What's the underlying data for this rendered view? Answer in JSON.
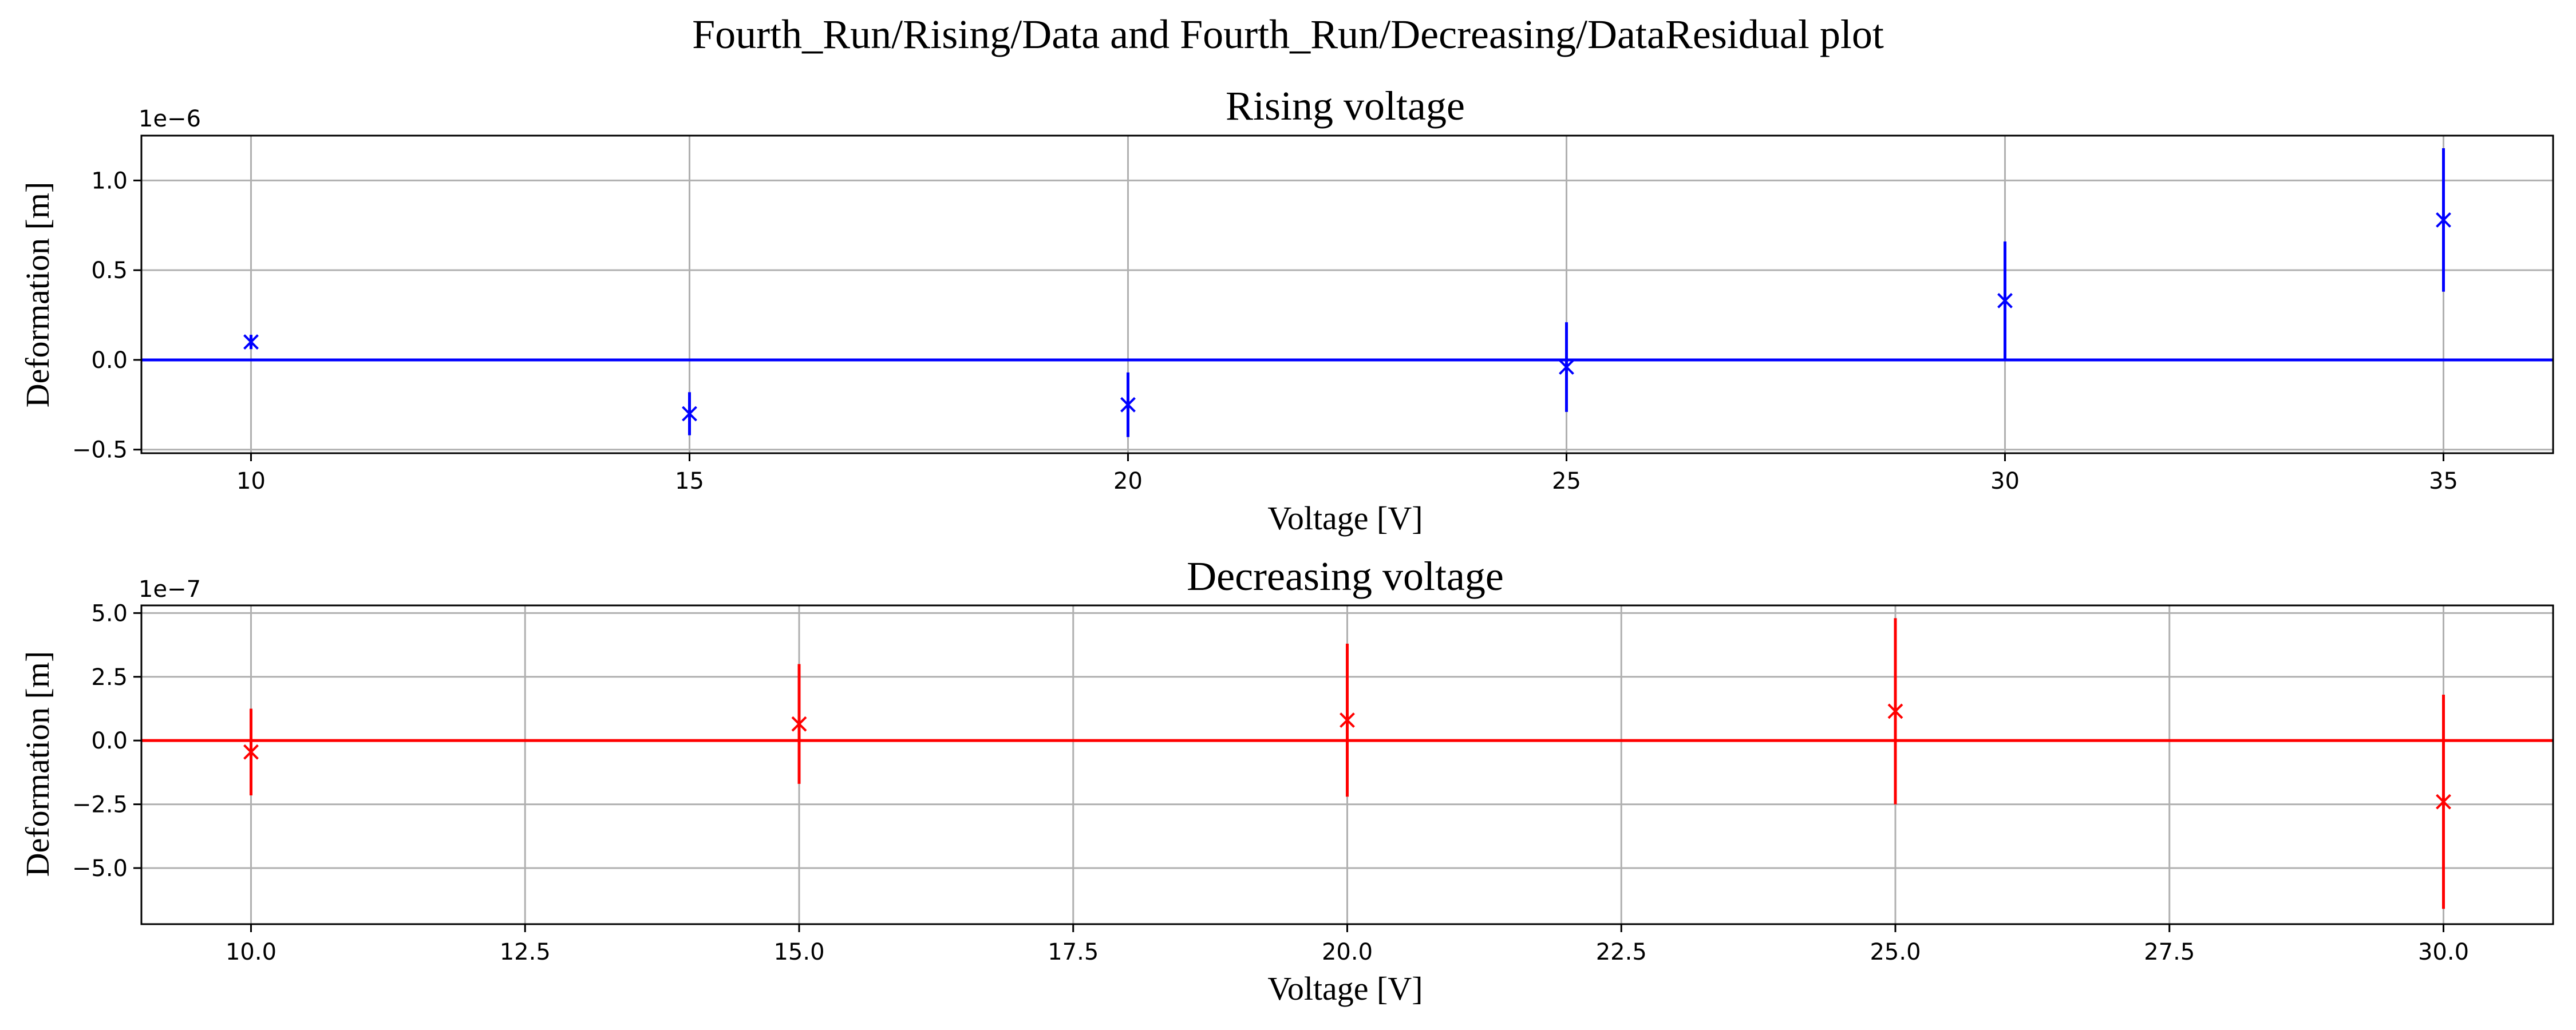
{
  "figure": {
    "suptitle": "Fourth_Run/Rising/Data and Fourth_Run/Decreasing/DataResidual plot"
  },
  "chart_data": [
    {
      "type": "scatter",
      "title": "Rising voltage",
      "xlabel": "Voltage [V]",
      "ylabel": "Deformation [m]",
      "offset_text": "1e−6",
      "color": "#0000ff",
      "marker": "x",
      "grid": true,
      "zero_line": true,
      "xlim": [
        8.75,
        36.25
      ],
      "ylim": [
        -5.2e-07,
        1.25e-06
      ],
      "xticks": [
        10,
        15,
        20,
        25,
        30,
        35
      ],
      "xtick_labels": [
        "10",
        "15",
        "20",
        "25",
        "30",
        "35"
      ],
      "yticks": [
        -5e-07,
        0,
        5e-07,
        1e-06
      ],
      "ytick_labels": [
        "−0.5",
        "0.0",
        "0.5",
        "1.0"
      ],
      "x": [
        10,
        15,
        20,
        25,
        30,
        35
      ],
      "y": [
        1e-07,
        -3e-07,
        -2.5e-07,
        -4e-08,
        3.3e-07,
        7.8e-07
      ],
      "yerr": [
        4e-08,
        1.2e-07,
        1.8e-07,
        2.5e-07,
        3.3e-07,
        4e-07
      ]
    },
    {
      "type": "scatter",
      "title": "Decreasing voltage",
      "xlabel": "Voltage [V]",
      "ylabel": "Deformation [m]",
      "offset_text": "1e−7",
      "color": "#ff0000",
      "marker": "x",
      "grid": true,
      "zero_line": true,
      "xlim": [
        9.0,
        31.0
      ],
      "ylim": [
        -7.2e-07,
        5.3e-07
      ],
      "xticks": [
        10,
        12.5,
        15,
        17.5,
        20,
        22.5,
        25,
        27.5,
        30
      ],
      "xtick_labels": [
        "10.0",
        "12.5",
        "15.0",
        "17.5",
        "20.0",
        "22.5",
        "25.0",
        "27.5",
        "30.0"
      ],
      "yticks": [
        -5e-07,
        -2.5e-07,
        0,
        2.5e-07,
        5e-07
      ],
      "ytick_labels": [
        "−5.0",
        "−2.5",
        "0.0",
        "2.5",
        "5.0"
      ],
      "x": [
        10,
        15,
        20,
        25,
        30
      ],
      "y": [
        -4.5e-08,
        6.5e-08,
        8e-08,
        1.15e-07,
        -2.4e-07
      ],
      "yerr": [
        1.7e-07,
        2.35e-07,
        3e-07,
        3.65e-07,
        4.2e-07
      ]
    }
  ]
}
